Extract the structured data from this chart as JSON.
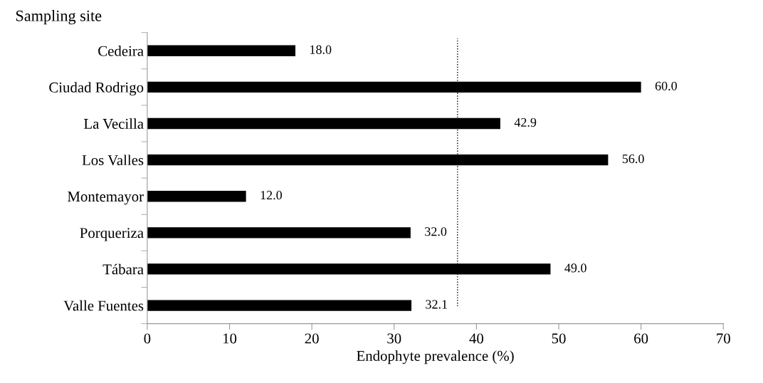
{
  "chart_data": {
    "type": "bar",
    "orientation": "horizontal",
    "categories": [
      "Cedeira",
      "Ciudad Rodrigo",
      "La Vecilla",
      "Los Valles",
      "Montemayor",
      "Porqueriza",
      "Tábara",
      "Valle Fuentes"
    ],
    "values": [
      18.0,
      60.0,
      42.9,
      56.0,
      12.0,
      32.0,
      49.0,
      32.1
    ],
    "color": "#000000",
    "value_labels": [
      "18.0",
      "60.0",
      "42.9",
      "56.0",
      "12.0",
      "32.0",
      "49.0",
      "32.1"
    ],
    "xlabel": "Endophyte prevalence (%)",
    "ylabel": "Sampling site",
    "xlim": [
      0,
      70
    ],
    "xticks": [
      0,
      10,
      20,
      30,
      40,
      50,
      60,
      70
    ],
    "ref_lines": [
      {
        "axis": "x",
        "value": 37.7,
        "color": "#000000",
        "line_style": "dotted"
      }
    ],
    "grid": false,
    "legend": false
  }
}
